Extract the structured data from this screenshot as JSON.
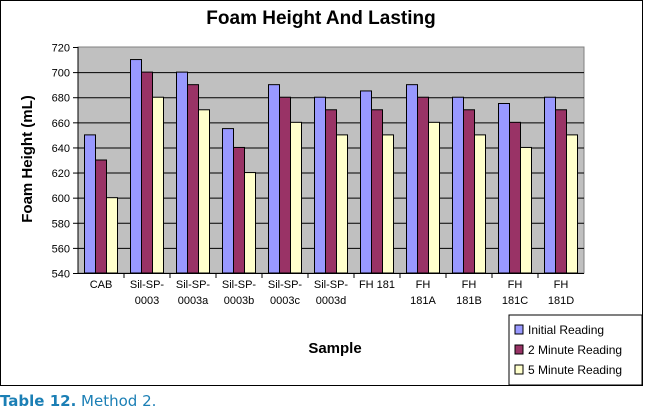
{
  "chart_data": {
    "type": "bar",
    "title": "Foam Height And Lasting",
    "xlabel": "Sample",
    "ylabel": "Foam Height (mL)",
    "ylim": [
      540,
      720
    ],
    "ytick_step": 20,
    "grid": true,
    "legend_position": "bottom-right",
    "categories": [
      [
        "CAB"
      ],
      [
        "Sil-SP-",
        "0003"
      ],
      [
        "Sil-SP-",
        "0003a"
      ],
      [
        "Sil-SP-",
        "0003b"
      ],
      [
        "Sil-SP-",
        "0003c"
      ],
      [
        "Sil-SP-",
        "0003d"
      ],
      [
        "FH 181"
      ],
      [
        "FH",
        "181A"
      ],
      [
        "FH",
        "181B"
      ],
      [
        "FH",
        "181C"
      ],
      [
        "FH",
        "181D"
      ]
    ],
    "series": [
      {
        "name": "Initial Reading",
        "color": "#9999ff",
        "values": [
          650,
          710,
          700,
          655,
          690,
          680,
          685,
          690,
          680,
          675,
          680
        ]
      },
      {
        "name": "2 Minute Reading",
        "color": "#993366",
        "values": [
          630,
          700,
          690,
          640,
          680,
          670,
          670,
          680,
          670,
          660,
          670
        ]
      },
      {
        "name": "5 Minute Reading",
        "color": "#ffffcc",
        "values": [
          600,
          680,
          670,
          620,
          660,
          650,
          650,
          660,
          650,
          640,
          650
        ]
      }
    ],
    "plot_background": "#c0c0c0"
  },
  "caption": {
    "label": "Table 12.",
    "text": " Method 2."
  }
}
